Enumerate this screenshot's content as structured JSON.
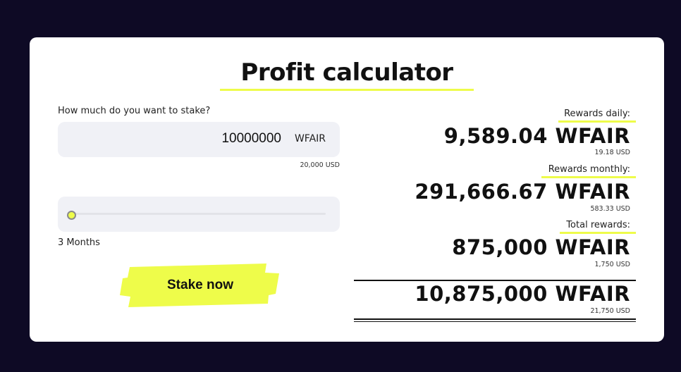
{
  "title": "Profit calculator",
  "stake": {
    "question": "How much do you want to stake?",
    "amount": "10000000",
    "unit": "WFAIR",
    "usd": "20,000 USD"
  },
  "duration": {
    "label": "3 Months",
    "slider_value": 0
  },
  "button": {
    "label": "Stake now"
  },
  "results": {
    "daily": {
      "label": "Rewards daily:",
      "value": "9,589.04 WFAIR",
      "usd": "19.18 USD"
    },
    "monthly": {
      "label": "Rewards monthly:",
      "value": "291,666.67 WFAIR",
      "usd": "583.33 USD"
    },
    "total_rewards": {
      "label": "Total rewards:",
      "value": "875,000 WFAIR",
      "usd": "1,750 USD"
    },
    "grand_total": {
      "value": "10,875,000 WFAIR",
      "usd": "21,750 USD"
    }
  },
  "colors": {
    "background": "#0e0a25",
    "accent": "#eefc4a",
    "field": "#f0f1f6"
  }
}
